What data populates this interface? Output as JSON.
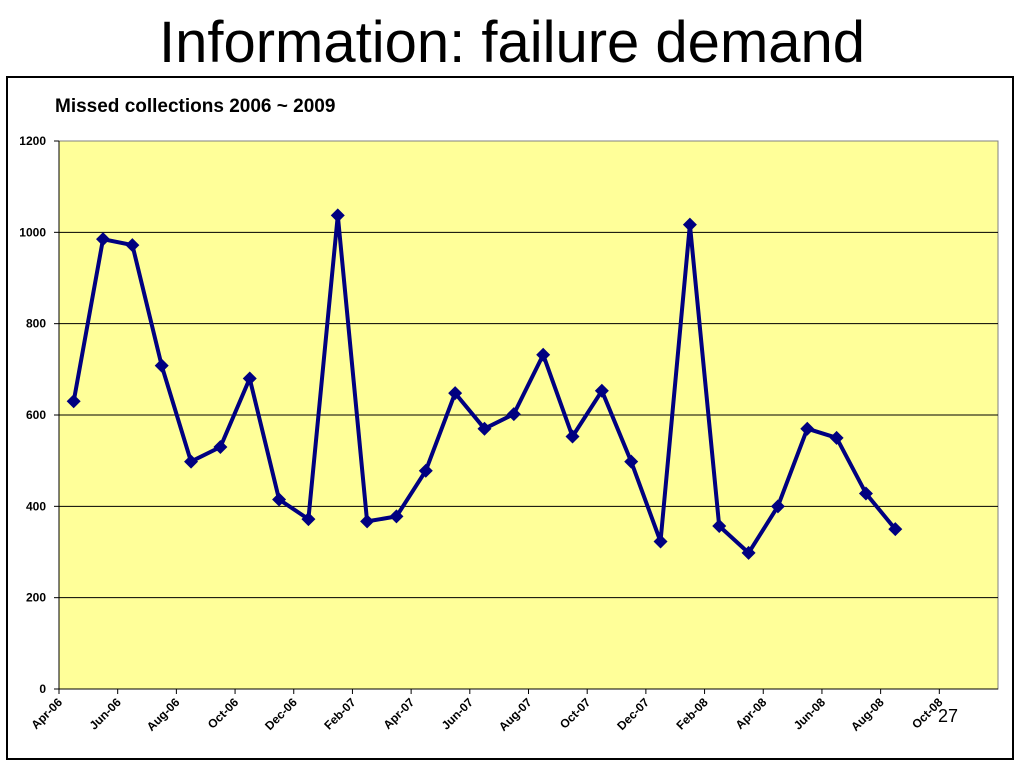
{
  "slide": {
    "title": "Information: failure demand",
    "page_number": "27"
  },
  "colors": {
    "plot_background": "#FFFF99",
    "series_line": "#000080",
    "grid": "#000000"
  },
  "chart_data": {
    "type": "line",
    "title": "Missed collections 2006 ~ 2009",
    "xlabel": "",
    "ylabel": "",
    "ylim": [
      0,
      1200
    ],
    "yticks": [
      0,
      200,
      400,
      600,
      800,
      1000,
      1200
    ],
    "grid": true,
    "legend": "none",
    "x_tick_labels": [
      "Apr-06",
      "Jun-06",
      "Aug-06",
      "Oct-06",
      "Dec-06",
      "Feb-07",
      "Apr-07",
      "Jun-07",
      "Aug-07",
      "Oct-07",
      "Dec-07",
      "Feb-08",
      "Apr-08",
      "Jun-08",
      "Aug-08",
      "Oct-08"
    ],
    "series": [
      {
        "values": [
          630,
          985,
          972,
          708,
          498,
          530,
          680,
          415,
          372,
          1037,
          367,
          378,
          478,
          648,
          570,
          602,
          732,
          553,
          653,
          498,
          323,
          1017,
          357,
          298,
          400,
          570,
          550,
          428,
          350
        ]
      }
    ]
  }
}
